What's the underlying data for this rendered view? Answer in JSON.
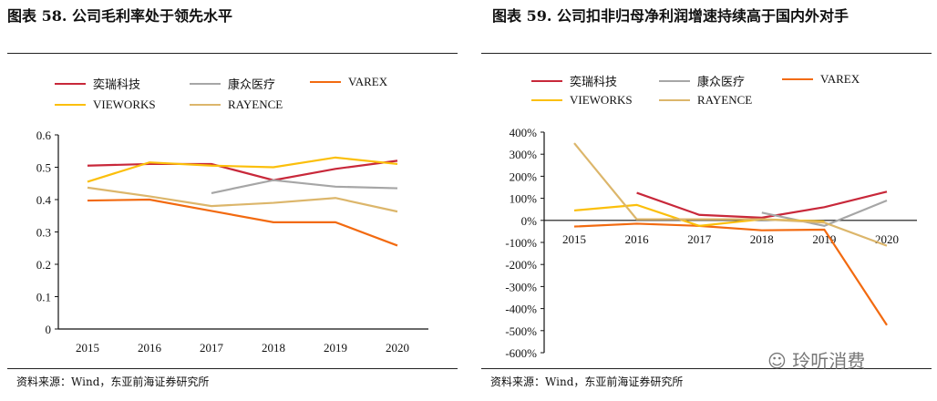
{
  "chart_data": [
    {
      "type": "line",
      "title": "图表 58. 公司毛利率处于领先水平",
      "categories": [
        "2015",
        "2016",
        "2017",
        "2018",
        "2019",
        "2020"
      ],
      "ylim": [
        0,
        0.6
      ],
      "yticks": [
        "0",
        "0.1",
        "0.2",
        "0.3",
        "0.4",
        "0.5",
        "0.6"
      ],
      "grid": false,
      "legend": "top",
      "series": [
        {
          "name": "奕瑞科技",
          "color": "#c8283a",
          "values": [
            0.505,
            0.51,
            0.51,
            0.46,
            0.495,
            0.52
          ]
        },
        {
          "name": "康众医疗",
          "color": "#a6a6a6",
          "values": [
            null,
            null,
            0.42,
            0.46,
            0.44,
            0.435
          ]
        },
        {
          "name": "VAREX",
          "color": "#f26a10",
          "values": [
            0.397,
            0.4,
            0.365,
            0.33,
            0.33,
            0.258
          ]
        },
        {
          "name": "VIEWORKS",
          "color": "#fbbf0b",
          "values": [
            0.455,
            0.515,
            0.505,
            0.5,
            0.53,
            0.51
          ]
        },
        {
          "name": "RAYENCE",
          "color": "#dcb66b",
          "values": [
            0.437,
            0.41,
            0.38,
            0.39,
            0.405,
            0.363
          ]
        }
      ],
      "source": "资料来源：Wind，东亚前海证券研究所"
    },
    {
      "type": "line",
      "title": "图表 59. 公司扣非归母净利润增速持续高于国内外对手",
      "categories": [
        "2015",
        "2016",
        "2017",
        "2018",
        "2019",
        "2020"
      ],
      "ylim": [
        -600,
        400
      ],
      "yticks": [
        "-600%",
        "-500%",
        "-400%",
        "-300%",
        "-200%",
        "-100%",
        "0%",
        "100%",
        "200%",
        "300%",
        "400%"
      ],
      "grid": false,
      "legend": "top",
      "series": [
        {
          "name": "奕瑞科技",
          "color": "#c8283a",
          "values": [
            null,
            125,
            25,
            12,
            60,
            130
          ]
        },
        {
          "name": "康众医疗",
          "color": "#a6a6a6",
          "values": [
            null,
            null,
            null,
            35,
            -25,
            90
          ]
        },
        {
          "name": "VAREX",
          "color": "#f26a10",
          "values": [
            -28,
            -15,
            -25,
            -45,
            -42,
            -475
          ]
        },
        {
          "name": "VIEWORKS",
          "color": "#fbbf0b",
          "values": [
            45,
            70,
            -25,
            5,
            -5,
            null
          ]
        },
        {
          "name": "RAYENCE",
          "color": "#dcb66b",
          "values": [
            350,
            5,
            5,
            5,
            -10,
            -115
          ]
        }
      ],
      "source": "资料来源：Wind，东亚前海证券研究所"
    }
  ],
  "watermark": "玲听消费"
}
